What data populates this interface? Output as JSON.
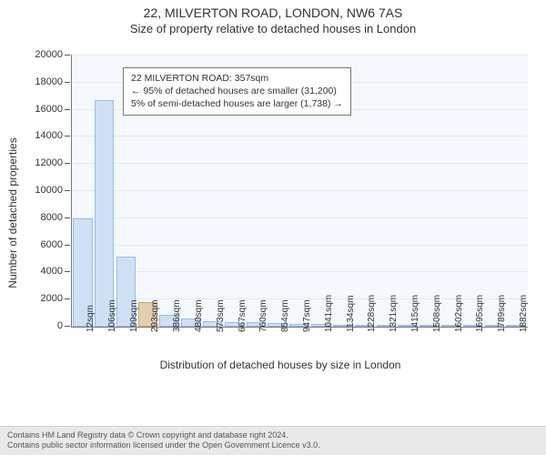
{
  "title_line1": "22, MILVERTON ROAD, LONDON, NW6 7AS",
  "title_line2": "Size of property relative to detached houses in London",
  "ylabel": "Number of detached properties",
  "xlabel": "Distribution of detached houses by size in London",
  "chart": {
    "type": "histogram",
    "background_color": "#f5f8fc",
    "grid_color": "#e4e9f0",
    "axis_color": "#777777",
    "bar_fill": "#cfe0f5",
    "bar_stroke": "#9abce6",
    "highlight_fill": "#e2ceb3",
    "highlight_stroke": "#c9a974",
    "ylim": [
      0,
      20000
    ],
    "ytick_step": 2000,
    "yticks": [
      0,
      2000,
      4000,
      6000,
      8000,
      10000,
      12000,
      14000,
      16000,
      18000,
      20000
    ],
    "x_labels": [
      "12sqm",
      "106sqm",
      "199sqm",
      "293sqm",
      "386sqm",
      "480sqm",
      "573sqm",
      "667sqm",
      "760sqm",
      "854sqm",
      "947sqm",
      "1041sqm",
      "1134sqm",
      "1228sqm",
      "1321sqm",
      "1415sqm",
      "1508sqm",
      "1602sqm",
      "1695sqm",
      "1789sqm",
      "1882sqm"
    ],
    "values": [
      8000,
      16700,
      5200,
      1800,
      900,
      600,
      400,
      350,
      320,
      300,
      220,
      190,
      160,
      150,
      130,
      120,
      110,
      100,
      90,
      85,
      80
    ],
    "highlight_index": 3,
    "title_fontsize": 14,
    "subtitle_fontsize": 13,
    "label_fontsize": 12,
    "tick_fontsize": 11
  },
  "annotation": {
    "line1": "22 MILVERTON ROAD: 357sqm",
    "line2": "← 95% of detached houses are smaller (31,200)",
    "line3": "5% of semi-detached houses are larger (1,738) →",
    "border_color": "#777777",
    "bg_color": "#ffffff",
    "fontsize": 10.5
  },
  "footer": {
    "line1": "Contains HM Land Registry data © Crown copyright and database right 2024.",
    "line2": "Contains public sector information licensed under the Open Government Licence v3.0.",
    "bg_color": "#e9e9e9",
    "border_color": "#cfcfcf",
    "fontsize": 9
  }
}
